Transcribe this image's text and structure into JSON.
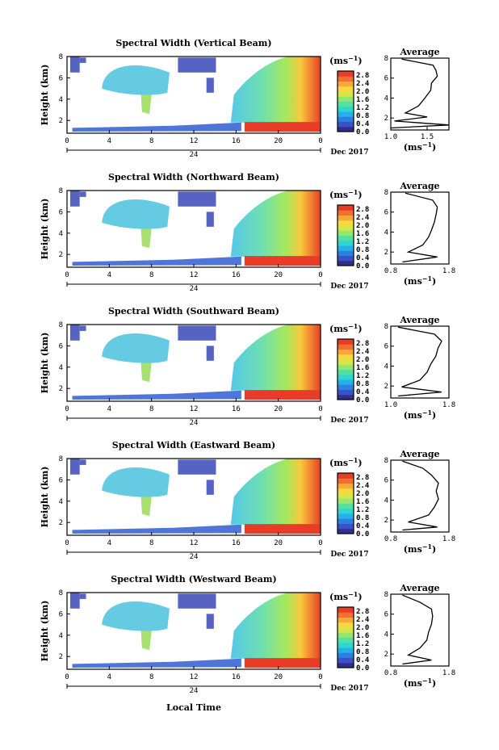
{
  "figure": {
    "x_axis_label": "Local Time",
    "date_label": "Dec 2017",
    "day_label": "24",
    "colorbar_unit": "(ms",
    "colorbar_unit_sup": "−1",
    "colorbar_unit_close": ")",
    "colorscale": [
      "#30308a",
      "#3c50c8",
      "#2f7fe0",
      "#24b0e8",
      "#2fd6d0",
      "#55e0a0",
      "#95e66a",
      "#d4e64a",
      "#f8d83c",
      "#f8a838",
      "#f07030",
      "#e83c28"
    ],
    "profile_title": "Average",
    "profile_unit": "(ms",
    "profile_unit_sup": "−1",
    "profile_unit_close": ")"
  },
  "chart_data": [
    {
      "type": "heatmap",
      "title": "Spectral Width (Vertical Beam)",
      "ylabel": "Height (km)",
      "xlabel": "Local Time",
      "x_ticks": [
        "0",
        "4",
        "8",
        "12",
        "16",
        "20",
        "0"
      ],
      "xlim": [
        0,
        24
      ],
      "y_ticks": [
        "2",
        "4",
        "6",
        "8"
      ],
      "ylim": [
        0.8,
        8
      ],
      "colorbar": {
        "ticks": [
          "0.0",
          "0.4",
          "0.8",
          "1.2",
          "1.6",
          "2.0",
          "2.4",
          "2.8"
        ],
        "range": [
          0.0,
          3.0
        ]
      },
      "profile": {
        "title": "Average",
        "x_ticks": [
          "1.0",
          "1.5"
        ],
        "xlim": [
          1.0,
          1.8
        ],
        "y_ticks": [
          "2",
          "4",
          "6",
          "8"
        ],
        "ylim": [
          0.8,
          8
        ],
        "points": [
          [
            1.0,
            1.0
          ],
          [
            1.8,
            1.3
          ],
          [
            1.05,
            1.7
          ],
          [
            1.5,
            2.1
          ],
          [
            1.2,
            2.5
          ],
          [
            1.38,
            3.2
          ],
          [
            1.47,
            4.0
          ],
          [
            1.55,
            4.8
          ],
          [
            1.56,
            5.5
          ],
          [
            1.64,
            6.2
          ],
          [
            1.62,
            6.8
          ],
          [
            1.58,
            7.3
          ],
          [
            1.15,
            7.9
          ]
        ]
      }
    },
    {
      "type": "heatmap",
      "title": "Spectral Width (Northward Beam)",
      "ylabel": "Height (km)",
      "xlabel": "Local Time",
      "x_ticks": [
        "0",
        "4",
        "8",
        "12",
        "16",
        "20",
        "0"
      ],
      "xlim": [
        0,
        24
      ],
      "y_ticks": [
        "2",
        "4",
        "6",
        "8"
      ],
      "ylim": [
        0.8,
        8
      ],
      "colorbar": {
        "ticks": [
          "0.0",
          "0.4",
          "0.8",
          "1.2",
          "1.6",
          "2.0",
          "2.4",
          "2.8"
        ],
        "range": [
          0.0,
          3.0
        ]
      },
      "profile": {
        "title": "Average",
        "x_ticks": [
          "0.8",
          "1.8"
        ],
        "xlim": [
          0.8,
          1.8
        ],
        "y_ticks": [
          "2",
          "4",
          "6",
          "8"
        ],
        "ylim": [
          0.8,
          8
        ],
        "points": [
          [
            1.0,
            1.0
          ],
          [
            1.6,
            1.5
          ],
          [
            1.1,
            2.0
          ],
          [
            1.35,
            2.7
          ],
          [
            1.45,
            3.5
          ],
          [
            1.5,
            4.2
          ],
          [
            1.55,
            5.0
          ],
          [
            1.58,
            5.8
          ],
          [
            1.6,
            6.5
          ],
          [
            1.52,
            7.2
          ],
          [
            1.05,
            7.9
          ]
        ]
      }
    },
    {
      "type": "heatmap",
      "title": "Spectral Width (Southward Beam)",
      "ylabel": "Height (km)",
      "xlabel": "Local Time",
      "x_ticks": [
        "0",
        "4",
        "8",
        "12",
        "16",
        "20",
        "0"
      ],
      "xlim": [
        0,
        24
      ],
      "y_ticks": [
        "2",
        "4",
        "6",
        "8"
      ],
      "ylim": [
        0.8,
        8
      ],
      "colorbar": {
        "ticks": [
          "0.0",
          "0.4",
          "0.8",
          "1.2",
          "1.6",
          "2.0",
          "2.4",
          "2.8"
        ],
        "range": [
          0.0,
          3.0
        ]
      },
      "profile": {
        "title": "Average",
        "x_ticks": [
          "1.0",
          "1.8"
        ],
        "xlim": [
          1.0,
          1.8
        ],
        "y_ticks": [
          "2",
          "4",
          "6",
          "8"
        ],
        "ylim": [
          0.8,
          8
        ],
        "points": [
          [
            1.1,
            1.0
          ],
          [
            1.7,
            1.4
          ],
          [
            1.15,
            1.9
          ],
          [
            1.4,
            2.6
          ],
          [
            1.5,
            3.4
          ],
          [
            1.55,
            4.2
          ],
          [
            1.62,
            5.0
          ],
          [
            1.65,
            5.8
          ],
          [
            1.7,
            6.5
          ],
          [
            1.6,
            7.2
          ],
          [
            1.1,
            7.9
          ]
        ]
      }
    },
    {
      "type": "heatmap",
      "title": "Spectral Width (Eastward Beam)",
      "ylabel": "Height (km)",
      "xlabel": "Local Time",
      "x_ticks": [
        "0",
        "4",
        "8",
        "12",
        "16",
        "20",
        "0"
      ],
      "xlim": [
        0,
        24
      ],
      "y_ticks": [
        "2",
        "4",
        "6",
        "8"
      ],
      "ylim": [
        0.8,
        8
      ],
      "colorbar": {
        "ticks": [
          "0.0",
          "0.4",
          "0.8",
          "1.2",
          "1.6",
          "2.0",
          "2.4",
          "2.8"
        ],
        "range": [
          0.0,
          3.0
        ]
      },
      "profile": {
        "title": "Average",
        "x_ticks": [
          "0.8",
          "1.8"
        ],
        "xlim": [
          0.8,
          1.8
        ],
        "y_ticks": [
          "2",
          "4",
          "6",
          "8"
        ],
        "ylim": [
          0.8,
          8
        ],
        "points": [
          [
            1.0,
            1.0
          ],
          [
            1.6,
            1.3
          ],
          [
            1.1,
            1.8
          ],
          [
            1.45,
            2.5
          ],
          [
            1.55,
            3.3
          ],
          [
            1.62,
            4.1
          ],
          [
            1.58,
            4.9
          ],
          [
            1.62,
            5.7
          ],
          [
            1.5,
            6.5
          ],
          [
            1.35,
            7.2
          ],
          [
            1.0,
            7.9
          ]
        ]
      }
    },
    {
      "type": "heatmap",
      "title": "Spectral Width (Westward Beam)",
      "ylabel": "Height (km)",
      "xlabel": "Local Time",
      "x_ticks": [
        "0",
        "4",
        "8",
        "12",
        "16",
        "20",
        "0"
      ],
      "xlim": [
        0,
        24
      ],
      "y_ticks": [
        "2",
        "4",
        "6",
        "8"
      ],
      "ylim": [
        0.8,
        8
      ],
      "colorbar": {
        "ticks": [
          "0.0",
          "0.4",
          "0.8",
          "1.2",
          "1.6",
          "2.0",
          "2.4",
          "2.8"
        ],
        "range": [
          0.0,
          3.0
        ]
      },
      "profile": {
        "title": "Average",
        "x_ticks": [
          "0.8",
          "1.8"
        ],
        "xlim": [
          0.8,
          1.8
        ],
        "y_ticks": [
          "2",
          "4",
          "6",
          "8"
        ],
        "ylim": [
          0.8,
          8
        ],
        "points": [
          [
            1.0,
            1.0
          ],
          [
            1.5,
            1.4
          ],
          [
            1.1,
            1.9
          ],
          [
            1.3,
            2.6
          ],
          [
            1.42,
            3.4
          ],
          [
            1.45,
            4.2
          ],
          [
            1.5,
            5.0
          ],
          [
            1.52,
            5.8
          ],
          [
            1.5,
            6.5
          ],
          [
            1.3,
            7.2
          ],
          [
            1.0,
            7.9
          ]
        ]
      }
    }
  ]
}
